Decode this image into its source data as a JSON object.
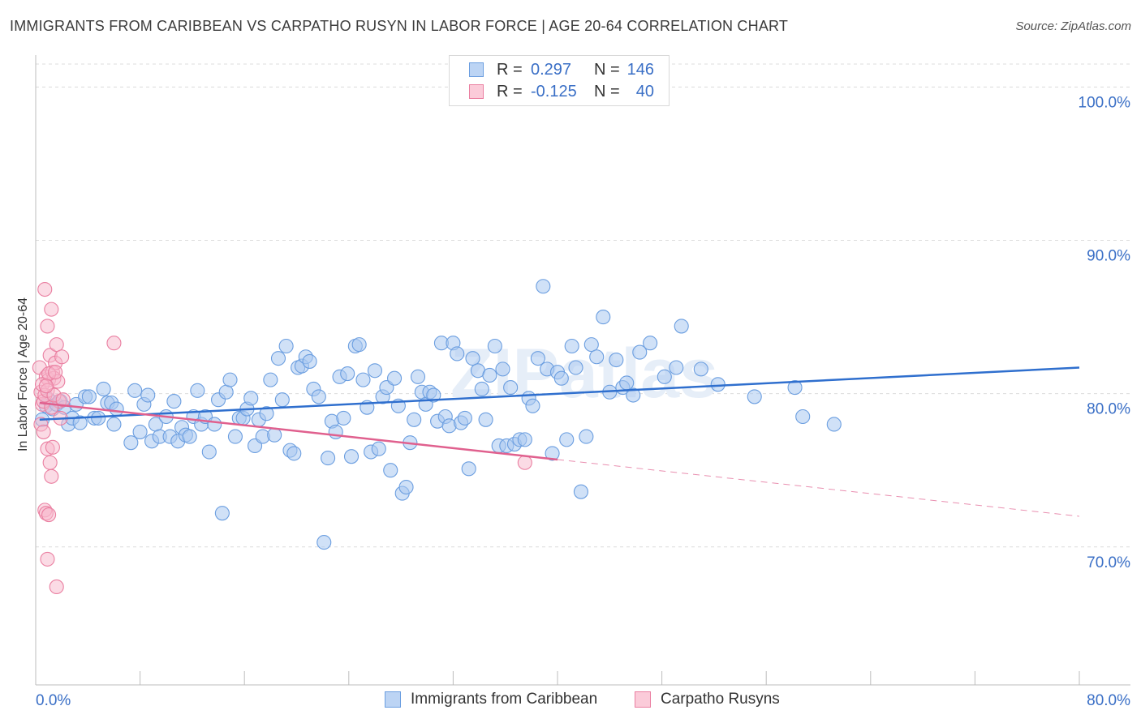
{
  "header": {
    "title": "IMMIGRANTS FROM CARIBBEAN VS CARPATHO RUSYN IN LABOR FORCE | AGE 20-64 CORRELATION CHART",
    "source": "Source: ZipAtlas.com"
  },
  "legend": {
    "rows": [
      {
        "r_label": "R =",
        "r_value": "0.297",
        "n_label": "N =",
        "n_value": "146"
      },
      {
        "r_label": "R =",
        "r_value": "-0.125",
        "n_label": "N =",
        "n_value": "40"
      }
    ]
  },
  "bottom_legend": {
    "series1": "Immigrants from Caribbean",
    "series2": "Carpatho Rusyns"
  },
  "colors": {
    "blue_fill": "#aac8f0",
    "blue_stroke": "#6b9ee0",
    "blue_line": "#2f6fce",
    "pink_fill": "#f7b8cc",
    "pink_stroke": "#ea7fa1",
    "pink_line": "#e0608e",
    "axis_text": "#3a6fc6",
    "grid": "#dcdcdc"
  },
  "watermark": "ZIPatlas",
  "chart_data": {
    "type": "scatter",
    "title": "IMMIGRANTS FROM CARIBBEAN VS CARPATHO RUSYN IN LABOR FORCE | AGE 20-64 CORRELATION CHART",
    "xlabel": "",
    "ylabel": "In Labor Force | Age 20-64",
    "xlim": [
      0,
      80
    ],
    "ylim": [
      61.0,
      101.5
    ],
    "x_tick_labels": [
      "0.0%",
      "80.0%"
    ],
    "y_ticks": [
      70,
      80,
      90,
      100
    ],
    "y_tick_labels": [
      "70.0%",
      "80.0%",
      "90.0%",
      "100.0%"
    ],
    "series": [
      {
        "name": "Immigrants from Caribbean",
        "r": 0.297,
        "n": 146,
        "trend": {
          "x": [
            0.3,
            80
          ],
          "y": [
            78.3,
            81.7
          ]
        },
        "points": [
          [
            0.5,
            78.3
          ],
          [
            0.8,
            79.2
          ],
          [
            1.0,
            79.6
          ],
          [
            1.3,
            79.0
          ],
          [
            1.6,
            79.3
          ],
          [
            1.9,
            79.5
          ],
          [
            2.2,
            79.1
          ],
          [
            2.5,
            78.0
          ],
          [
            2.8,
            78.4
          ],
          [
            3.1,
            79.3
          ],
          [
            3.4,
            78.1
          ],
          [
            3.8,
            79.8
          ],
          [
            4.1,
            79.8
          ],
          [
            4.5,
            78.4
          ],
          [
            4.8,
            78.4
          ],
          [
            5.2,
            80.3
          ],
          [
            5.5,
            79.4
          ],
          [
            5.8,
            79.4
          ],
          [
            6.0,
            78.0
          ],
          [
            6.2,
            79.0
          ],
          [
            7.3,
            76.8
          ],
          [
            7.6,
            80.2
          ],
          [
            8.0,
            77.5
          ],
          [
            8.3,
            79.3
          ],
          [
            8.6,
            79.9
          ],
          [
            8.9,
            76.9
          ],
          [
            9.2,
            78.0
          ],
          [
            9.5,
            77.2
          ],
          [
            10.0,
            78.5
          ],
          [
            10.3,
            77.2
          ],
          [
            10.6,
            79.5
          ],
          [
            10.9,
            76.9
          ],
          [
            11.2,
            77.8
          ],
          [
            11.5,
            77.3
          ],
          [
            11.8,
            77.2
          ],
          [
            12.1,
            78.5
          ],
          [
            12.4,
            80.2
          ],
          [
            12.7,
            78.0
          ],
          [
            13.0,
            78.5
          ],
          [
            13.3,
            76.2
          ],
          [
            13.7,
            78.0
          ],
          [
            14.0,
            79.6
          ],
          [
            14.3,
            72.2
          ],
          [
            14.6,
            80.1
          ],
          [
            14.9,
            80.9
          ],
          [
            15.3,
            77.2
          ],
          [
            15.6,
            78.4
          ],
          [
            15.9,
            78.4
          ],
          [
            16.2,
            79.0
          ],
          [
            16.5,
            79.7
          ],
          [
            16.8,
            76.6
          ],
          [
            17.1,
            78.3
          ],
          [
            17.4,
            77.2
          ],
          [
            17.7,
            78.7
          ],
          [
            18.0,
            80.9
          ],
          [
            18.3,
            77.3
          ],
          [
            18.6,
            82.3
          ],
          [
            18.9,
            79.6
          ],
          [
            19.2,
            83.1
          ],
          [
            19.5,
            76.3
          ],
          [
            19.8,
            76.1
          ],
          [
            20.1,
            81.7
          ],
          [
            20.4,
            81.8
          ],
          [
            20.7,
            82.4
          ],
          [
            21.0,
            82.1
          ],
          [
            21.3,
            80.3
          ],
          [
            21.7,
            79.8
          ],
          [
            22.1,
            70.3
          ],
          [
            22.4,
            75.8
          ],
          [
            22.7,
            78.2
          ],
          [
            23.0,
            77.5
          ],
          [
            23.3,
            81.1
          ],
          [
            23.6,
            78.4
          ],
          [
            23.9,
            81.3
          ],
          [
            24.2,
            75.9
          ],
          [
            24.5,
            83.1
          ],
          [
            24.8,
            83.2
          ],
          [
            25.1,
            80.9
          ],
          [
            25.4,
            79.1
          ],
          [
            25.7,
            76.2
          ],
          [
            26.0,
            81.5
          ],
          [
            26.3,
            76.4
          ],
          [
            26.6,
            79.8
          ],
          [
            26.9,
            80.4
          ],
          [
            27.2,
            75.0
          ],
          [
            27.5,
            81.0
          ],
          [
            27.8,
            79.2
          ],
          [
            28.1,
            73.5
          ],
          [
            28.4,
            73.9
          ],
          [
            28.7,
            76.8
          ],
          [
            29.0,
            78.3
          ],
          [
            29.3,
            81.1
          ],
          [
            29.6,
            80.1
          ],
          [
            29.9,
            79.3
          ],
          [
            30.2,
            80.1
          ],
          [
            30.5,
            79.9
          ],
          [
            30.8,
            78.2
          ],
          [
            31.1,
            83.3
          ],
          [
            31.4,
            78.5
          ],
          [
            31.7,
            77.9
          ],
          [
            32.0,
            83.3
          ],
          [
            32.3,
            82.6
          ],
          [
            32.6,
            78.1
          ],
          [
            32.9,
            78.4
          ],
          [
            33.2,
            75.1
          ],
          [
            33.5,
            82.3
          ],
          [
            33.9,
            81.5
          ],
          [
            34.2,
            80.3
          ],
          [
            34.5,
            78.3
          ],
          [
            34.8,
            81.2
          ],
          [
            35.2,
            83.1
          ],
          [
            35.5,
            76.6
          ],
          [
            35.8,
            81.6
          ],
          [
            36.1,
            76.6
          ],
          [
            36.4,
            80.4
          ],
          [
            36.7,
            76.7
          ],
          [
            37.1,
            77.0
          ],
          [
            37.5,
            77.0
          ],
          [
            37.8,
            79.7
          ],
          [
            38.1,
            79.2
          ],
          [
            38.5,
            82.3
          ],
          [
            38.9,
            87.0
          ],
          [
            39.2,
            81.6
          ],
          [
            39.6,
            76.1
          ],
          [
            40.0,
            81.4
          ],
          [
            40.3,
            81.0
          ],
          [
            40.7,
            77.0
          ],
          [
            41.1,
            83.1
          ],
          [
            41.4,
            81.7
          ],
          [
            41.8,
            73.6
          ],
          [
            42.2,
            77.2
          ],
          [
            42.6,
            83.2
          ],
          [
            43.0,
            82.4
          ],
          [
            43.5,
            85.0
          ],
          [
            44.0,
            80.1
          ],
          [
            44.5,
            82.2
          ],
          [
            45.0,
            80.4
          ],
          [
            45.3,
            80.7
          ],
          [
            45.8,
            79.9
          ],
          [
            46.3,
            82.7
          ],
          [
            47.1,
            83.3
          ],
          [
            48.2,
            81.1
          ],
          [
            49.1,
            81.7
          ],
          [
            49.5,
            84.4
          ],
          [
            51.0,
            81.6
          ],
          [
            52.3,
            80.6
          ],
          [
            55.1,
            79.8
          ],
          [
            58.2,
            80.4
          ],
          [
            58.8,
            78.5
          ],
          [
            61.2,
            78.0
          ]
        ]
      },
      {
        "name": "Carpatho Rusyns",
        "r": -0.125,
        "n": 40,
        "trend": {
          "x": [
            0.3,
            40.0
          ],
          "y": [
            79.4,
            75.7
          ]
        },
        "trend_extension": {
          "x": [
            40.0,
            80
          ],
          "y": [
            75.7,
            72.0
          ]
        },
        "points": [
          [
            0.3,
            81.7
          ],
          [
            0.4,
            80.1
          ],
          [
            0.5,
            79.3
          ],
          [
            0.6,
            79.5
          ],
          [
            0.7,
            86.8
          ],
          [
            0.8,
            81.1
          ],
          [
            0.9,
            84.4
          ],
          [
            1.0,
            80.9
          ],
          [
            1.1,
            82.5
          ],
          [
            1.2,
            85.5
          ],
          [
            1.3,
            81.4
          ],
          [
            1.4,
            81.0
          ],
          [
            1.5,
            82.0
          ],
          [
            1.6,
            83.2
          ],
          [
            1.7,
            80.8
          ],
          [
            1.8,
            79.5
          ],
          [
            1.9,
            78.4
          ],
          [
            2.0,
            82.4
          ],
          [
            0.4,
            78.0
          ],
          [
            0.6,
            77.5
          ],
          [
            0.9,
            76.4
          ],
          [
            1.1,
            75.5
          ],
          [
            1.2,
            74.6
          ],
          [
            1.3,
            76.5
          ],
          [
            0.7,
            72.4
          ],
          [
            0.8,
            72.2
          ],
          [
            1.0,
            72.1
          ],
          [
            0.9,
            69.2
          ],
          [
            1.6,
            67.4
          ],
          [
            6.0,
            83.3
          ],
          [
            0.5,
            80.6
          ],
          [
            0.7,
            79.9
          ],
          [
            0.9,
            80.2
          ],
          [
            1.2,
            79.1
          ],
          [
            1.4,
            79.9
          ],
          [
            1.0,
            81.3
          ],
          [
            1.5,
            81.4
          ],
          [
            0.8,
            80.5
          ],
          [
            2.1,
            79.6
          ],
          [
            37.5,
            75.5
          ]
        ]
      }
    ]
  }
}
